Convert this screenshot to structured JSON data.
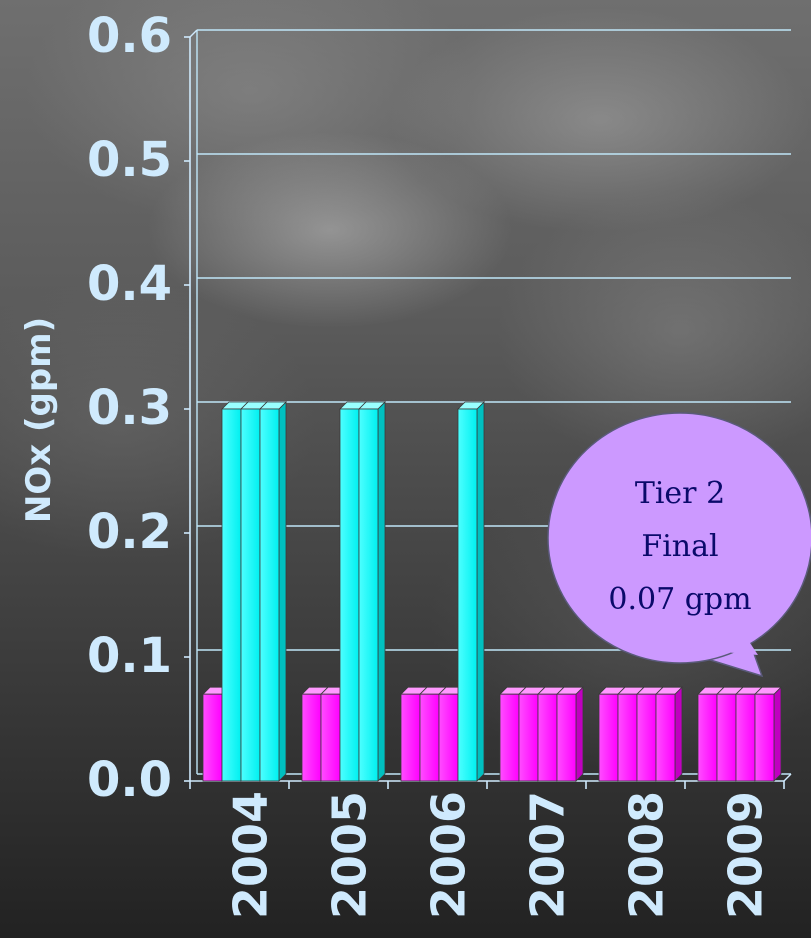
{
  "chart_data": {
    "type": "bar",
    "ylabel": "NOx (gpm)",
    "xlabel": "",
    "title": "",
    "ylim": [
      0,
      0.6
    ],
    "yticks": [
      "0.0",
      "0.1",
      "0.2",
      "0.3",
      "0.4",
      "0.5",
      "0.6"
    ],
    "categories": [
      "2004",
      "2005",
      "2006",
      "2007",
      "2008",
      "2009"
    ],
    "bars": [
      [
        0.07,
        0.3,
        0.3,
        0.3
      ],
      [
        0.07,
        0.07,
        0.3,
        0.3
      ],
      [
        0.07,
        0.07,
        0.07,
        0.3
      ],
      [
        0.07,
        0.07,
        0.07,
        0.07
      ],
      [
        0.07,
        0.07,
        0.07,
        0.07
      ],
      [
        0.07,
        0.07,
        0.07,
        0.07
      ]
    ],
    "colors": {
      "tier2": "#ff00ff",
      "interim": "#00ffff",
      "axis": "#cfeafd",
      "grid": "#bfe6f8"
    },
    "grid": true,
    "annotation": {
      "lines": [
        "Tier 2",
        "Final",
        "0.07 gpm"
      ],
      "fill": "#cc99ff"
    }
  }
}
